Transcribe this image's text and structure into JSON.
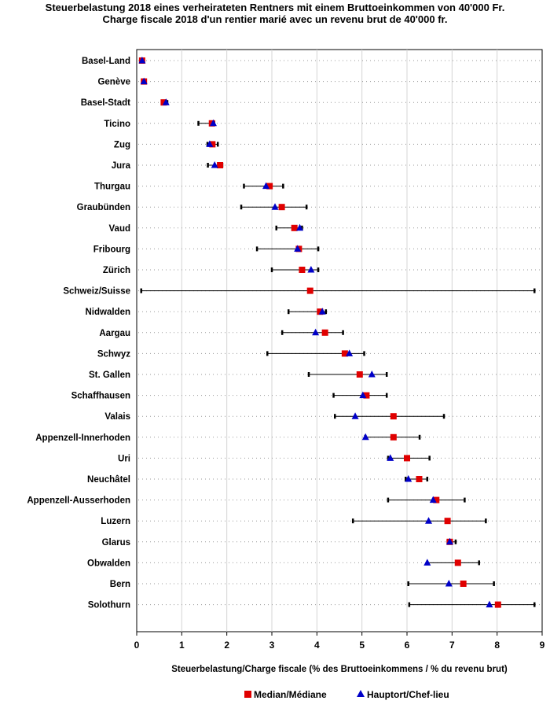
{
  "chart_data": {
    "type": "range-dot",
    "title": "Steuerbelastung 2018 eines verheirateten Rentners mit einem Bruttoeinkommen von 40'000 Fr.",
    "subtitle": "Charge fiscale 2018 d'un rentier marié avec un revenu brut de 40'000 fr.",
    "xlabel": "Steuerbelastung/Charge fiscale (% des Bruttoeinkommens / % du revenu brut)",
    "xlim": [
      0,
      9
    ],
    "xticks": [
      0,
      1,
      2,
      3,
      4,
      5,
      6,
      7,
      8,
      9
    ],
    "grid": "vertical",
    "legend_position": "bottom",
    "colors": {
      "median": "#e00000",
      "capital": "#0000c8",
      "range": "#000000",
      "grid": "#d4d4d4"
    },
    "series": [
      {
        "name": "Median/Médiane",
        "key": "median",
        "marker": "square"
      },
      {
        "name": "Hauptort/Chef-lieu",
        "key": "capital",
        "marker": "triangle"
      }
    ],
    "categories": [
      {
        "name": "Basel-Land",
        "min": 0.1,
        "max": 0.15,
        "median": 0.12,
        "capital": 0.12
      },
      {
        "name": "Genève",
        "min": 0.14,
        "max": 0.18,
        "median": 0.16,
        "capital": 0.16
      },
      {
        "name": "Basel-Stadt",
        "min": 0.58,
        "max": 0.68,
        "median": 0.6,
        "capital": 0.65
      },
      {
        "name": "Ticino",
        "min": 1.37,
        "max": 1.72,
        "median": 1.67,
        "capital": 1.7
      },
      {
        "name": "Zug",
        "min": 1.57,
        "max": 1.8,
        "median": 1.68,
        "capital": 1.62
      },
      {
        "name": "Jura",
        "min": 1.58,
        "max": 1.9,
        "median": 1.85,
        "capital": 1.73
      },
      {
        "name": "Thurgau",
        "min": 2.38,
        "max": 3.25,
        "median": 2.95,
        "capital": 2.87
      },
      {
        "name": "Graubünden",
        "min": 2.32,
        "max": 3.77,
        "median": 3.22,
        "capital": 3.07
      },
      {
        "name": "Vaud",
        "min": 3.1,
        "max": 3.67,
        "median": 3.5,
        "capital": 3.62
      },
      {
        "name": "Fribourg",
        "min": 2.67,
        "max": 4.03,
        "median": 3.6,
        "capital": 3.57
      },
      {
        "name": "Zürich",
        "min": 3.0,
        "max": 4.03,
        "median": 3.67,
        "capital": 3.87
      },
      {
        "name": "Schweiz/Suisse",
        "min": 0.1,
        "max": 8.83,
        "median": 3.85,
        "capital": null
      },
      {
        "name": "Nidwalden",
        "min": 3.37,
        "max": 4.2,
        "median": 4.07,
        "capital": 4.12
      },
      {
        "name": "Aargau",
        "min": 3.23,
        "max": 4.58,
        "median": 4.18,
        "capital": 3.97
      },
      {
        "name": "Schwyz",
        "min": 2.9,
        "max": 5.05,
        "median": 4.62,
        "capital": 4.72
      },
      {
        "name": "St. Gallen",
        "min": 3.82,
        "max": 5.55,
        "median": 4.95,
        "capital": 5.22
      },
      {
        "name": "Schaffhausen",
        "min": 4.37,
        "max": 5.55,
        "median": 5.1,
        "capital": 5.02
      },
      {
        "name": "Valais",
        "min": 4.4,
        "max": 6.82,
        "median": 5.7,
        "capital": 4.85
      },
      {
        "name": "Appenzell-Innerhoden",
        "min": 5.07,
        "max": 6.28,
        "median": 5.7,
        "capital": 5.08
      },
      {
        "name": "Uri",
        "min": 5.58,
        "max": 6.5,
        "median": 6.0,
        "capital": 5.63
      },
      {
        "name": "Neuchâtel",
        "min": 5.97,
        "max": 6.45,
        "median": 6.27,
        "capital": 6.03
      },
      {
        "name": "Appenzell-Ausserhoden",
        "min": 5.58,
        "max": 7.28,
        "median": 6.65,
        "capital": 6.58
      },
      {
        "name": "Luzern",
        "min": 4.8,
        "max": 7.75,
        "median": 6.9,
        "capital": 6.48
      },
      {
        "name": "Glarus",
        "min": 6.9,
        "max": 7.08,
        "median": 6.95,
        "capital": 6.95
      },
      {
        "name": "Obwalden",
        "min": 6.45,
        "max": 7.6,
        "median": 7.13,
        "capital": 6.45
      },
      {
        "name": "Bern",
        "min": 6.03,
        "max": 7.93,
        "median": 7.25,
        "capital": 6.93
      },
      {
        "name": "Solothurn",
        "min": 6.05,
        "max": 8.83,
        "median": 8.02,
        "capital": 7.83
      }
    ]
  }
}
